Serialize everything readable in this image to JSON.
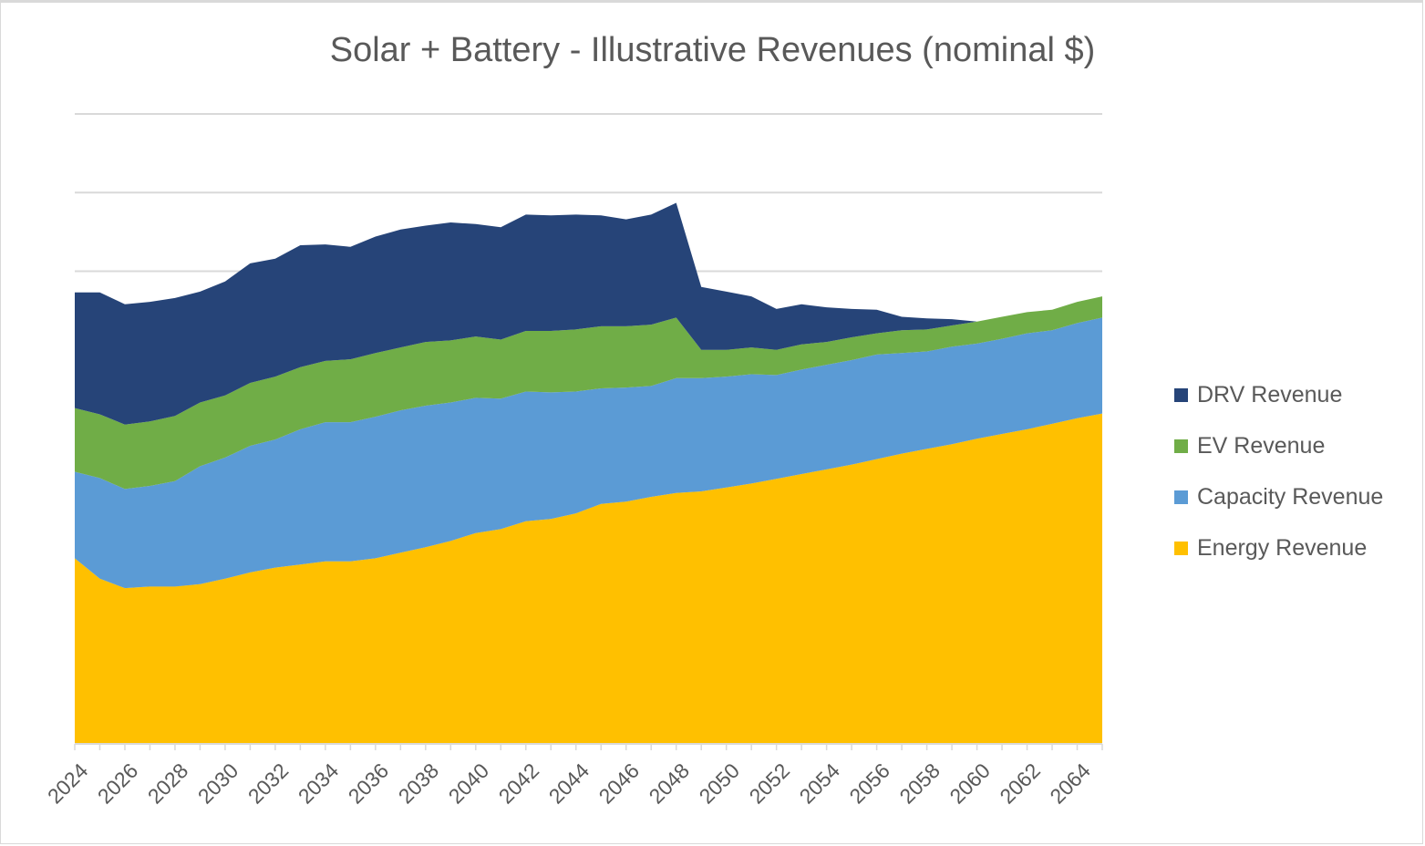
{
  "chart_data": {
    "type": "area",
    "stacked": true,
    "title": "Solar + Battery - Illustrative Revenues (nominal $)",
    "xlabel": "",
    "ylabel": "",
    "y_tick_labels_shown": false,
    "ylim": [
      0,
      8
    ],
    "grid": true,
    "legend_position": "right",
    "x": [
      2024,
      2025,
      2026,
      2027,
      2028,
      2029,
      2030,
      2031,
      2032,
      2033,
      2034,
      2035,
      2036,
      2037,
      2038,
      2039,
      2040,
      2041,
      2042,
      2043,
      2044,
      2045,
      2046,
      2047,
      2048,
      2049,
      2050,
      2051,
      2052,
      2053,
      2054,
      2055,
      2056,
      2057,
      2058,
      2059,
      2060,
      2061,
      2062,
      2063,
      2064,
      2065
    ],
    "x_tick_labels": [
      "2024",
      "2026",
      "2028",
      "2030",
      "2032",
      "2034",
      "2036",
      "2038",
      "2040",
      "2042",
      "2044",
      "2046",
      "2048",
      "2050",
      "2052",
      "2054",
      "2056",
      "2058",
      "2060",
      "2062",
      "2064"
    ],
    "series": [
      {
        "name": "Energy Revenue",
        "color": "#FFC000",
        "values": [
          2.35,
          2.09,
          1.97,
          1.99,
          1.99,
          2.02,
          2.09,
          2.17,
          2.23,
          2.27,
          2.31,
          2.31,
          2.35,
          2.42,
          2.49,
          2.57,
          2.67,
          2.72,
          2.82,
          2.85,
          2.92,
          3.04,
          3.07,
          3.13,
          3.18,
          3.2,
          3.25,
          3.3,
          3.36,
          3.42,
          3.48,
          3.54,
          3.61,
          3.68,
          3.74,
          3.8,
          3.87,
          3.93,
          3.99,
          4.06,
          4.13,
          4.19
        ]
      },
      {
        "name": "Capacity Revenue",
        "color": "#5B9BD5",
        "values": [
          1.1,
          1.28,
          1.26,
          1.28,
          1.34,
          1.5,
          1.54,
          1.61,
          1.63,
          1.72,
          1.77,
          1.77,
          1.8,
          1.81,
          1.8,
          1.76,
          1.72,
          1.66,
          1.65,
          1.61,
          1.55,
          1.47,
          1.45,
          1.41,
          1.46,
          1.44,
          1.41,
          1.39,
          1.32,
          1.33,
          1.33,
          1.33,
          1.33,
          1.28,
          1.24,
          1.24,
          1.21,
          1.21,
          1.22,
          1.19,
          1.21,
          1.22
        ]
      },
      {
        "name": "EV Revenue",
        "color": "#70AD47",
        "values": [
          0.81,
          0.81,
          0.82,
          0.82,
          0.83,
          0.81,
          0.79,
          0.8,
          0.8,
          0.79,
          0.78,
          0.8,
          0.81,
          0.8,
          0.81,
          0.79,
          0.78,
          0.75,
          0.77,
          0.78,
          0.79,
          0.79,
          0.78,
          0.78,
          0.77,
          0.36,
          0.34,
          0.34,
          0.32,
          0.32,
          0.29,
          0.29,
          0.27,
          0.29,
          0.28,
          0.27,
          0.28,
          0.28,
          0.27,
          0.26,
          0.27,
          0.27
        ]
      },
      {
        "name": "DRV Revenue",
        "color": "#264478",
        "values": [
          1.47,
          1.55,
          1.53,
          1.52,
          1.5,
          1.41,
          1.45,
          1.52,
          1.5,
          1.55,
          1.48,
          1.43,
          1.48,
          1.5,
          1.48,
          1.5,
          1.43,
          1.43,
          1.48,
          1.47,
          1.46,
          1.41,
          1.36,
          1.4,
          1.46,
          0.8,
          0.74,
          0.65,
          0.52,
          0.51,
          0.44,
          0.36,
          0.3,
          0.17,
          0.14,
          0.08,
          0,
          0,
          0,
          0,
          0,
          0
        ]
      }
    ],
    "legend": [
      "DRV Revenue",
      "EV Revenue",
      "Capacity Revenue",
      "Energy Revenue"
    ]
  },
  "colors": {
    "gridline": "#d9d9d9",
    "axis": "#d9d9d9",
    "text": "#595959"
  }
}
